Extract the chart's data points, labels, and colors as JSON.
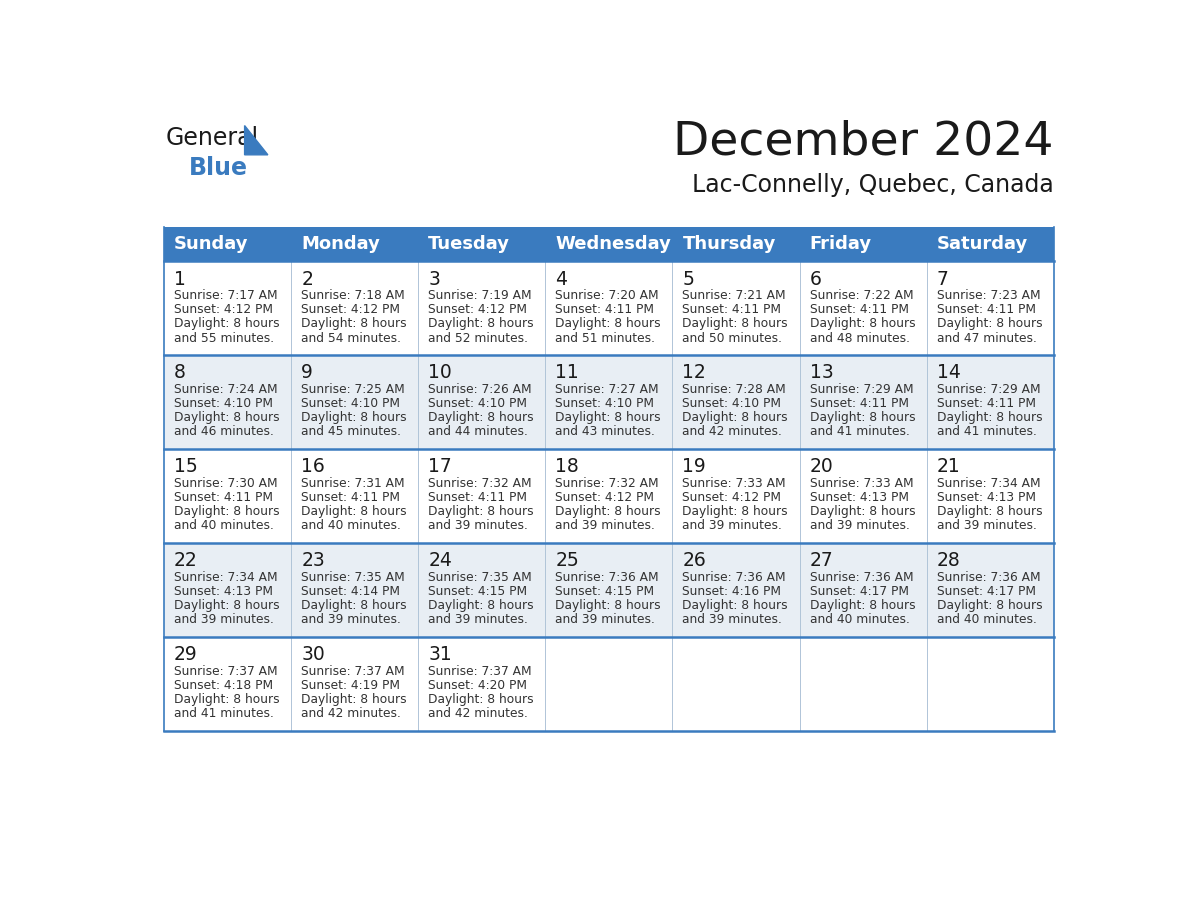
{
  "title": "December 2024",
  "subtitle": "Lac-Connelly, Quebec, Canada",
  "days_of_week": [
    "Sunday",
    "Monday",
    "Tuesday",
    "Wednesday",
    "Thursday",
    "Friday",
    "Saturday"
  ],
  "header_bg": "#3a7bbf",
  "header_text": "#ffffff",
  "row_bg_odd": "#e8eef4",
  "row_bg_even": "#ffffff",
  "row_border": "#3a7bbf",
  "col_border": "#b0c4d8",
  "day_num_color": "#1a1a1a",
  "text_color": "#333333",
  "title_color": "#1a1a1a",
  "logo_general_color": "#1a1a1a",
  "logo_blue_color": "#3a7bbf",
  "logo_triangle_color": "#3a7bbf",
  "calendar_data": [
    [
      {
        "day": 1,
        "sunrise": "7:17 AM",
        "sunset": "4:12 PM",
        "daylight": "8 hours and 55 minutes."
      },
      {
        "day": 2,
        "sunrise": "7:18 AM",
        "sunset": "4:12 PM",
        "daylight": "8 hours and 54 minutes."
      },
      {
        "day": 3,
        "sunrise": "7:19 AM",
        "sunset": "4:12 PM",
        "daylight": "8 hours and 52 minutes."
      },
      {
        "day": 4,
        "sunrise": "7:20 AM",
        "sunset": "4:11 PM",
        "daylight": "8 hours and 51 minutes."
      },
      {
        "day": 5,
        "sunrise": "7:21 AM",
        "sunset": "4:11 PM",
        "daylight": "8 hours and 50 minutes."
      },
      {
        "day": 6,
        "sunrise": "7:22 AM",
        "sunset": "4:11 PM",
        "daylight": "8 hours and 48 minutes."
      },
      {
        "day": 7,
        "sunrise": "7:23 AM",
        "sunset": "4:11 PM",
        "daylight": "8 hours and 47 minutes."
      }
    ],
    [
      {
        "day": 8,
        "sunrise": "7:24 AM",
        "sunset": "4:10 PM",
        "daylight": "8 hours and 46 minutes."
      },
      {
        "day": 9,
        "sunrise": "7:25 AM",
        "sunset": "4:10 PM",
        "daylight": "8 hours and 45 minutes."
      },
      {
        "day": 10,
        "sunrise": "7:26 AM",
        "sunset": "4:10 PM",
        "daylight": "8 hours and 44 minutes."
      },
      {
        "day": 11,
        "sunrise": "7:27 AM",
        "sunset": "4:10 PM",
        "daylight": "8 hours and 43 minutes."
      },
      {
        "day": 12,
        "sunrise": "7:28 AM",
        "sunset": "4:10 PM",
        "daylight": "8 hours and 42 minutes."
      },
      {
        "day": 13,
        "sunrise": "7:29 AM",
        "sunset": "4:11 PM",
        "daylight": "8 hours and 41 minutes."
      },
      {
        "day": 14,
        "sunrise": "7:29 AM",
        "sunset": "4:11 PM",
        "daylight": "8 hours and 41 minutes."
      }
    ],
    [
      {
        "day": 15,
        "sunrise": "7:30 AM",
        "sunset": "4:11 PM",
        "daylight": "8 hours and 40 minutes."
      },
      {
        "day": 16,
        "sunrise": "7:31 AM",
        "sunset": "4:11 PM",
        "daylight": "8 hours and 40 minutes."
      },
      {
        "day": 17,
        "sunrise": "7:32 AM",
        "sunset": "4:11 PM",
        "daylight": "8 hours and 39 minutes."
      },
      {
        "day": 18,
        "sunrise": "7:32 AM",
        "sunset": "4:12 PM",
        "daylight": "8 hours and 39 minutes."
      },
      {
        "day": 19,
        "sunrise": "7:33 AM",
        "sunset": "4:12 PM",
        "daylight": "8 hours and 39 minutes."
      },
      {
        "day": 20,
        "sunrise": "7:33 AM",
        "sunset": "4:13 PM",
        "daylight": "8 hours and 39 minutes."
      },
      {
        "day": 21,
        "sunrise": "7:34 AM",
        "sunset": "4:13 PM",
        "daylight": "8 hours and 39 minutes."
      }
    ],
    [
      {
        "day": 22,
        "sunrise": "7:34 AM",
        "sunset": "4:13 PM",
        "daylight": "8 hours and 39 minutes."
      },
      {
        "day": 23,
        "sunrise": "7:35 AM",
        "sunset": "4:14 PM",
        "daylight": "8 hours and 39 minutes."
      },
      {
        "day": 24,
        "sunrise": "7:35 AM",
        "sunset": "4:15 PM",
        "daylight": "8 hours and 39 minutes."
      },
      {
        "day": 25,
        "sunrise": "7:36 AM",
        "sunset": "4:15 PM",
        "daylight": "8 hours and 39 minutes."
      },
      {
        "day": 26,
        "sunrise": "7:36 AM",
        "sunset": "4:16 PM",
        "daylight": "8 hours and 39 minutes."
      },
      {
        "day": 27,
        "sunrise": "7:36 AM",
        "sunset": "4:17 PM",
        "daylight": "8 hours and 40 minutes."
      },
      {
        "day": 28,
        "sunrise": "7:36 AM",
        "sunset": "4:17 PM",
        "daylight": "8 hours and 40 minutes."
      }
    ],
    [
      {
        "day": 29,
        "sunrise": "7:37 AM",
        "sunset": "4:18 PM",
        "daylight": "8 hours and 41 minutes."
      },
      {
        "day": 30,
        "sunrise": "7:37 AM",
        "sunset": "4:19 PM",
        "daylight": "8 hours and 42 minutes."
      },
      {
        "day": 31,
        "sunrise": "7:37 AM",
        "sunset": "4:20 PM",
        "daylight": "8 hours and 42 minutes."
      },
      null,
      null,
      null,
      null
    ]
  ]
}
